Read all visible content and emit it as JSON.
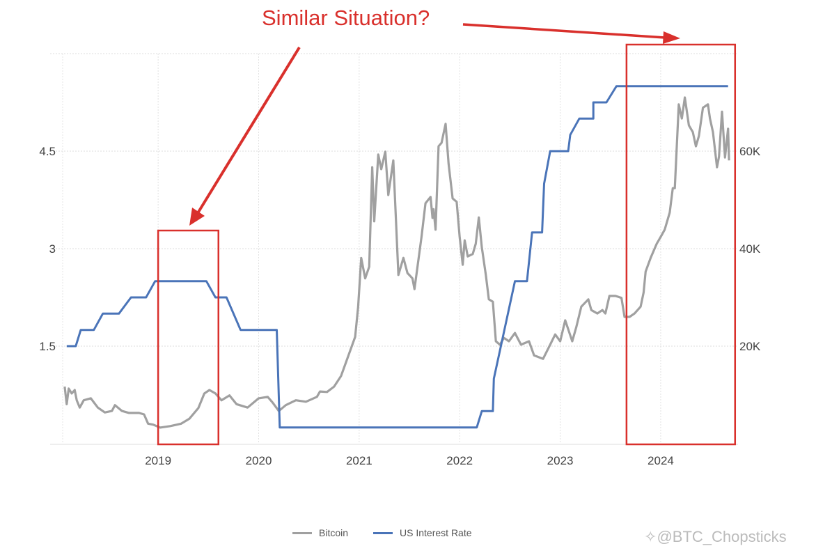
{
  "annotation": {
    "title": "Similar Situation?",
    "color": "#d9302c",
    "highlight_ranges": [
      [
        2019.0,
        2019.6
      ],
      [
        2023.66,
        2024.74
      ]
    ]
  },
  "watermark": "@BTC_Chopsticks",
  "chart_data": {
    "type": "line",
    "title": "Similar Situation?",
    "xlabel": "",
    "x_ticks": [
      "2019",
      "2020",
      "2021",
      "2022",
      "2023",
      "2024"
    ],
    "xlim": [
      2018.05,
      2024.7
    ],
    "y_left": {
      "ticks": [
        "1.5",
        "3",
        "4.5"
      ],
      "values": [
        1.5,
        3,
        4.5
      ],
      "ylim": [
        0,
        6
      ]
    },
    "y_right": {
      "ticks": [
        "20K",
        "40K",
        "60K"
      ],
      "values": [
        20,
        40,
        60
      ],
      "ylim": [
        0,
        80
      ]
    },
    "grid": true,
    "legend_position": "bottom",
    "series": [
      {
        "name": "Bitcoin",
        "axis": "right",
        "unit": "K USD",
        "color": "#a0a0a0",
        "points": [
          [
            2018.07,
            11.7
          ],
          [
            2018.09,
            8.1
          ],
          [
            2018.11,
            11.3
          ],
          [
            2018.14,
            10.3
          ],
          [
            2018.17,
            11.0
          ],
          [
            2018.19,
            8.9
          ],
          [
            2018.22,
            7.4
          ],
          [
            2018.26,
            8.9
          ],
          [
            2018.33,
            9.3
          ],
          [
            2018.4,
            7.4
          ],
          [
            2018.47,
            6.4
          ],
          [
            2018.54,
            6.7
          ],
          [
            2018.57,
            7.9
          ],
          [
            2018.64,
            6.7
          ],
          [
            2018.71,
            6.3
          ],
          [
            2018.81,
            6.3
          ],
          [
            2018.86,
            6.0
          ],
          [
            2018.9,
            4.1
          ],
          [
            2018.95,
            3.9
          ],
          [
            2019.02,
            3.3
          ],
          [
            2019.12,
            3.6
          ],
          [
            2019.23,
            4.1
          ],
          [
            2019.31,
            5.1
          ],
          [
            2019.4,
            7.3
          ],
          [
            2019.46,
            10.3
          ],
          [
            2019.51,
            11.0
          ],
          [
            2019.57,
            10.3
          ],
          [
            2019.63,
            8.9
          ],
          [
            2019.71,
            9.9
          ],
          [
            2019.78,
            8.1
          ],
          [
            2019.89,
            7.4
          ],
          [
            2020.0,
            9.3
          ],
          [
            2020.09,
            9.6
          ],
          [
            2020.14,
            8.4
          ],
          [
            2020.2,
            6.7
          ],
          [
            2020.27,
            7.9
          ],
          [
            2020.37,
            8.9
          ],
          [
            2020.47,
            8.6
          ],
          [
            2020.58,
            9.6
          ],
          [
            2020.61,
            10.7
          ],
          [
            2020.68,
            10.6
          ],
          [
            2020.75,
            11.7
          ],
          [
            2020.82,
            13.9
          ],
          [
            2020.89,
            17.9
          ],
          [
            2020.96,
            21.9
          ],
          [
            2020.99,
            28.1
          ],
          [
            2021.02,
            38.1
          ],
          [
            2021.06,
            33.9
          ],
          [
            2021.1,
            36.3
          ],
          [
            2021.13,
            56.7
          ],
          [
            2021.15,
            45.6
          ],
          [
            2021.19,
            59.3
          ],
          [
            2021.22,
            56.3
          ],
          [
            2021.26,
            59.9
          ],
          [
            2021.29,
            51.0
          ],
          [
            2021.34,
            58.1
          ],
          [
            2021.39,
            34.6
          ],
          [
            2021.44,
            38.1
          ],
          [
            2021.48,
            35.0
          ],
          [
            2021.53,
            33.9
          ],
          [
            2021.55,
            31.7
          ],
          [
            2021.62,
            42.4
          ],
          [
            2021.66,
            49.3
          ],
          [
            2021.71,
            50.6
          ],
          [
            2021.73,
            46.3
          ],
          [
            2021.74,
            48.1
          ],
          [
            2021.76,
            43.9
          ],
          [
            2021.79,
            61.0
          ],
          [
            2021.82,
            61.7
          ],
          [
            2021.86,
            65.6
          ],
          [
            2021.89,
            57.4
          ],
          [
            2021.93,
            50.3
          ],
          [
            2021.97,
            49.6
          ],
          [
            2022.0,
            42.4
          ],
          [
            2022.03,
            36.7
          ],
          [
            2022.05,
            41.7
          ],
          [
            2022.08,
            38.4
          ],
          [
            2022.13,
            38.9
          ],
          [
            2022.16,
            41.0
          ],
          [
            2022.19,
            46.4
          ],
          [
            2022.22,
            40.3
          ],
          [
            2022.26,
            34.6
          ],
          [
            2022.29,
            29.6
          ],
          [
            2022.33,
            29.1
          ],
          [
            2022.36,
            21.0
          ],
          [
            2022.4,
            20.3
          ],
          [
            2022.44,
            21.7
          ],
          [
            2022.49,
            21.0
          ],
          [
            2022.55,
            22.7
          ],
          [
            2022.61,
            20.3
          ],
          [
            2022.69,
            21.0
          ],
          [
            2022.74,
            18.1
          ],
          [
            2022.83,
            17.4
          ],
          [
            2022.9,
            20.3
          ],
          [
            2022.95,
            22.4
          ],
          [
            2023.0,
            21.0
          ],
          [
            2023.05,
            25.3
          ],
          [
            2023.12,
            21.0
          ],
          [
            2023.16,
            23.9
          ],
          [
            2023.21,
            28.1
          ],
          [
            2023.28,
            29.6
          ],
          [
            2023.31,
            27.4
          ],
          [
            2023.37,
            26.7
          ],
          [
            2023.42,
            27.4
          ],
          [
            2023.45,
            26.7
          ],
          [
            2023.49,
            30.3
          ],
          [
            2023.55,
            30.3
          ],
          [
            2023.61,
            29.9
          ],
          [
            2023.64,
            26.0
          ],
          [
            2023.69,
            26.0
          ],
          [
            2023.74,
            26.7
          ],
          [
            2023.8,
            28.1
          ],
          [
            2023.83,
            31.0
          ],
          [
            2023.85,
            35.3
          ],
          [
            2023.9,
            38.1
          ],
          [
            2023.96,
            41.0
          ],
          [
            2024.0,
            42.4
          ],
          [
            2024.04,
            43.9
          ],
          [
            2024.09,
            47.4
          ],
          [
            2024.12,
            52.4
          ],
          [
            2024.14,
            52.4
          ],
          [
            2024.18,
            69.6
          ],
          [
            2024.21,
            66.7
          ],
          [
            2024.24,
            71.0
          ],
          [
            2024.28,
            65.3
          ],
          [
            2024.32,
            63.9
          ],
          [
            2024.35,
            61.0
          ],
          [
            2024.38,
            63.1
          ],
          [
            2024.42,
            68.9
          ],
          [
            2024.47,
            69.6
          ],
          [
            2024.49,
            66.7
          ],
          [
            2024.52,
            63.9
          ],
          [
            2024.56,
            56.7
          ],
          [
            2024.58,
            58.9
          ],
          [
            2024.61,
            68.1
          ],
          [
            2024.64,
            58.7
          ],
          [
            2024.67,
            64.6
          ],
          [
            2024.68,
            58.1
          ]
        ]
      },
      {
        "name": "US Interest Rate",
        "axis": "left",
        "unit": "%",
        "color": "#4a74b8",
        "points": [
          [
            2018.09,
            1.5
          ],
          [
            2018.18,
            1.5
          ],
          [
            2018.23,
            1.75
          ],
          [
            2018.36,
            1.75
          ],
          [
            2018.45,
            2.0
          ],
          [
            2018.61,
            2.0
          ],
          [
            2018.73,
            2.25
          ],
          [
            2018.88,
            2.25
          ],
          [
            2018.97,
            2.5
          ],
          [
            2019.48,
            2.5
          ],
          [
            2019.57,
            2.25
          ],
          [
            2019.68,
            2.25
          ],
          [
            2019.82,
            1.75
          ],
          [
            2020.18,
            1.75
          ],
          [
            2020.21,
            0.25
          ],
          [
            2022.17,
            0.25
          ],
          [
            2022.22,
            0.5
          ],
          [
            2022.33,
            0.5
          ],
          [
            2022.34,
            1.0
          ],
          [
            2022.55,
            2.5
          ],
          [
            2022.67,
            2.5
          ],
          [
            2022.72,
            3.25
          ],
          [
            2022.82,
            3.25
          ],
          [
            2022.84,
            4.0
          ],
          [
            2022.9,
            4.5
          ],
          [
            2023.08,
            4.5
          ],
          [
            2023.1,
            4.75
          ],
          [
            2023.19,
            5.0
          ],
          [
            2023.33,
            5.0
          ],
          [
            2023.33,
            5.25
          ],
          [
            2023.46,
            5.25
          ],
          [
            2023.56,
            5.5
          ],
          [
            2024.67,
            5.5
          ]
        ]
      }
    ]
  }
}
